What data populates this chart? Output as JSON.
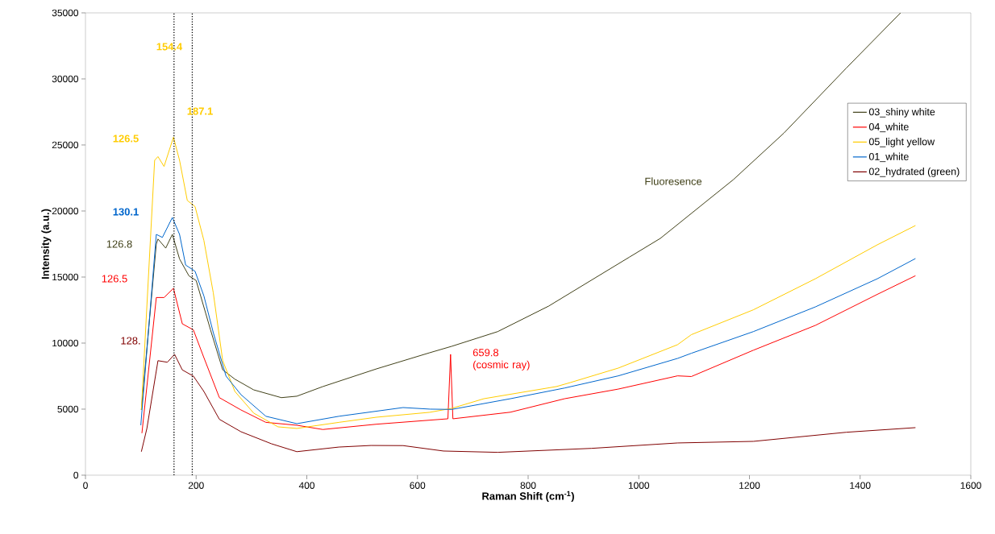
{
  "chart_data": {
    "type": "line",
    "xlabel": "Raman Shift (cm$^{-1}$)",
    "ylabel": "Intensity (a.u.)",
    "xlim": [
      0,
      1600
    ],
    "ylim": [
      0,
      35000
    ],
    "xticks": [
      0,
      200,
      400,
      600,
      800,
      1000,
      1200,
      1400,
      1600
    ],
    "yticks": [
      0,
      5000,
      10000,
      15000,
      20000,
      25000,
      30000,
      35000
    ],
    "grid": false,
    "legend": "right",
    "marker": "none",
    "line_style": "solid",
    "series": [
      {
        "name": "03_shiny white",
        "color": "#404018",
        "x": [
          101,
          128,
          131,
          145,
          157,
          170,
          187,
          200,
          226,
          248,
          270,
          304,
          354,
          382,
          429,
          526,
          622,
          662,
          745,
          837,
          983,
          1039,
          1122,
          1171,
          1262,
          1375,
          1473
        ],
        "values": [
          4940,
          17500,
          17880,
          17190,
          18230,
          16370,
          15090,
          14740,
          11000,
          7980,
          7270,
          6460,
          5870,
          5980,
          6710,
          8050,
          9270,
          9760,
          10870,
          12800,
          16510,
          17930,
          20730,
          22380,
          25890,
          30820,
          35000
        ]
      },
      {
        "name": "04_white",
        "color": "#ff0000",
        "x": [
          102,
          128,
          142,
          159,
          175,
          195,
          214,
          242,
          281,
          326,
          382,
          429,
          526,
          655,
          659.8,
          664,
          768,
          866,
          963,
          1070,
          1095,
          1207,
          1319,
          1431,
          1500
        ],
        "values": [
          3180,
          13450,
          13450,
          14150,
          11460,
          11000,
          8900,
          5870,
          4940,
          4000,
          3780,
          3460,
          3860,
          4270,
          9150,
          4270,
          4770,
          5790,
          6520,
          7520,
          7470,
          9460,
          11340,
          13690,
          15100
        ]
      },
      {
        "name": "05_light yellow",
        "color": "#ffcc00",
        "x": [
          101,
          125,
          131,
          142,
          159,
          170,
          184,
          198,
          214,
          231,
          248,
          270,
          304,
          348,
          382,
          458,
          526,
          622,
          662,
          720,
          851,
          876,
          963,
          1070,
          1095,
          1207,
          1319,
          1431,
          1500
        ],
        "values": [
          4940,
          23840,
          24120,
          23370,
          25590,
          23840,
          20800,
          20340,
          17770,
          13800,
          8670,
          6340,
          4700,
          3660,
          3540,
          4000,
          4390,
          4760,
          5060,
          5790,
          6710,
          7010,
          8110,
          9880,
          10640,
          12520,
          14870,
          17440,
          18900
        ]
      },
      {
        "name": "01_white",
        "color": "#0066cc",
        "x": [
          100,
          128,
          139,
          157,
          170,
          181,
          198,
          214,
          231,
          254,
          281,
          326,
          382,
          458,
          574,
          623,
          662,
          768,
          866,
          963,
          1070,
          1095,
          1207,
          1319,
          1431,
          1500
        ],
        "values": [
          3780,
          18230,
          18000,
          19510,
          18230,
          15910,
          15440,
          13570,
          10790,
          7500,
          6100,
          4460,
          3900,
          4460,
          5120,
          5000,
          4980,
          5790,
          6600,
          7520,
          8840,
          9230,
          10870,
          12740,
          14870,
          16400
        ]
      },
      {
        "name": "02_hydrated (green)",
        "color": "#800000",
        "x": [
          101,
          111,
          131,
          148,
          161,
          175,
          195,
          214,
          242,
          281,
          336,
          382,
          458,
          516,
          574,
          647,
          745,
          914,
          1070,
          1207,
          1375,
          1500
        ],
        "values": [
          1780,
          3540,
          8670,
          8550,
          9150,
          7970,
          7500,
          6340,
          4230,
          3290,
          2380,
          1780,
          2130,
          2250,
          2240,
          1830,
          1730,
          2030,
          2440,
          2560,
          3250,
          3600
        ]
      }
    ],
    "ref_lines": [
      {
        "axis": "x",
        "value": 160,
        "color": "#000000",
        "line_style": "dotted"
      },
      {
        "axis": "x",
        "value": 193,
        "color": "#000000",
        "line_style": "dotted"
      }
    ],
    "annotations": [
      "154.4",
      "187.1",
      "126.5",
      "130.1",
      "126.8",
      "126.5",
      "128.",
      "659.8 (cosmic ray)",
      "Fluoresence"
    ]
  }
}
